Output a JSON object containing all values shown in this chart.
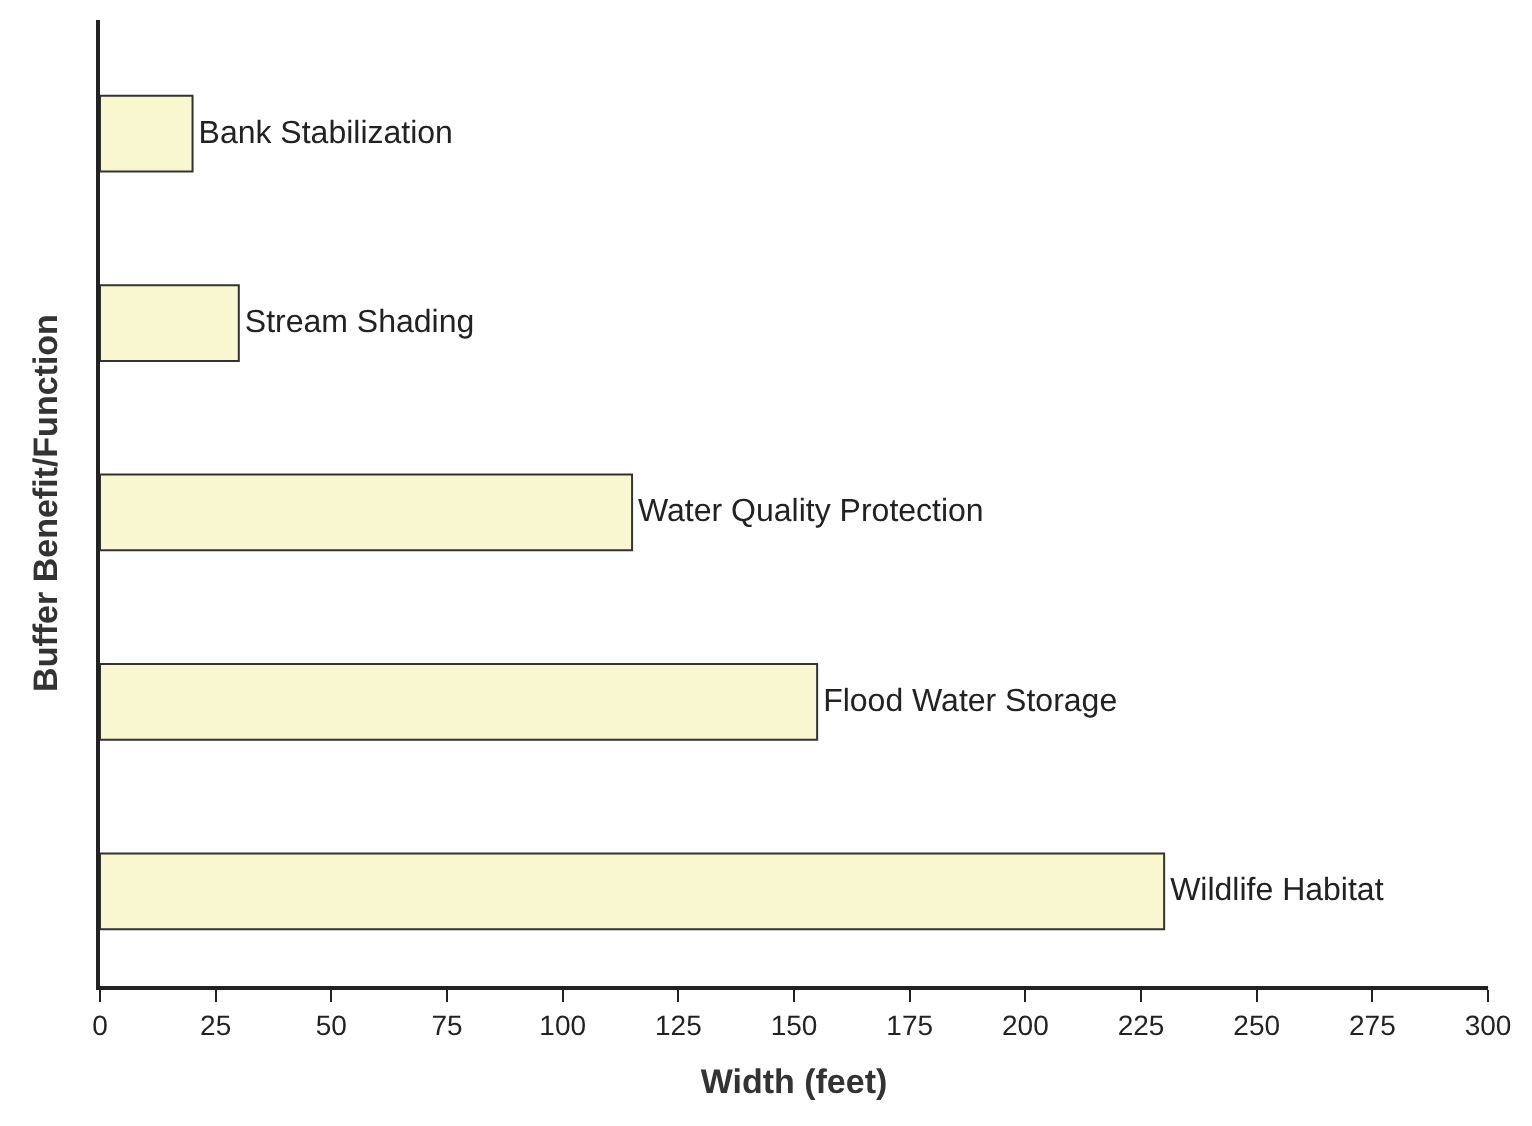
{
  "chart_data": {
    "type": "bar",
    "orientation": "horizontal",
    "xlabel": "Width (feet)",
    "ylabel": "Buffer Benefit/Function",
    "categories": [
      "Bank Stabilization",
      "Stream Shading",
      "Water Quality Protection",
      "Flood Water Storage",
      "Wildlife Habitat"
    ],
    "values": [
      20,
      30,
      115,
      155,
      230
    ],
    "color": "#f9f7cf",
    "xlim": [
      0,
      300
    ],
    "xticks": [
      0,
      25,
      50,
      75,
      100,
      125,
      150,
      175,
      200,
      225,
      250,
      275,
      300
    ],
    "tick_labels": "x"
  }
}
